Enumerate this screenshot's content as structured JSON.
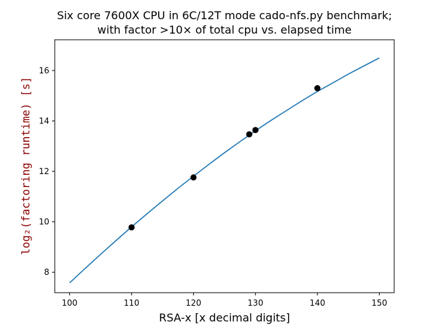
{
  "chart_data": {
    "type": "line",
    "title_lines": [
      "Six core 7600X CPU in 6C/12T mode cado-nfs.py benchmark;",
      "with factor >10× of total cpu vs. elapsed time"
    ],
    "xlabel": "RSA-x [x decimal digits]",
    "ylabel": "log₂(factoring runtime) [s]",
    "ylabel_color": "#8b0000",
    "xlim": [
      97.6,
      152.4
    ],
    "ylim": [
      7.19,
      17.22
    ],
    "x_ticks": [
      100,
      110,
      120,
      130,
      140,
      150
    ],
    "y_ticks": [
      8,
      10,
      12,
      14,
      16
    ],
    "grid": false,
    "series": [
      {
        "kind": "line",
        "color": "#1f77b4",
        "x": [
          100,
          102.5,
          105,
          107.5,
          110,
          112.5,
          115,
          117.5,
          120,
          122.5,
          125,
          127.5,
          130,
          132.5,
          135,
          137.5,
          140,
          142.5,
          145,
          147.5,
          150
        ],
        "y": [
          7.58,
          8.15,
          8.71,
          9.26,
          9.8,
          10.32,
          10.83,
          11.33,
          11.81,
          12.28,
          12.74,
          13.18,
          13.61,
          14.02,
          14.41,
          14.8,
          15.17,
          15.51,
          15.86,
          16.18,
          16.5
        ]
      },
      {
        "kind": "scatter",
        "color": "#000000",
        "x": [
          110,
          120,
          129,
          130,
          140
        ],
        "y": [
          9.78,
          11.76,
          13.47,
          13.64,
          15.3
        ]
      }
    ]
  }
}
